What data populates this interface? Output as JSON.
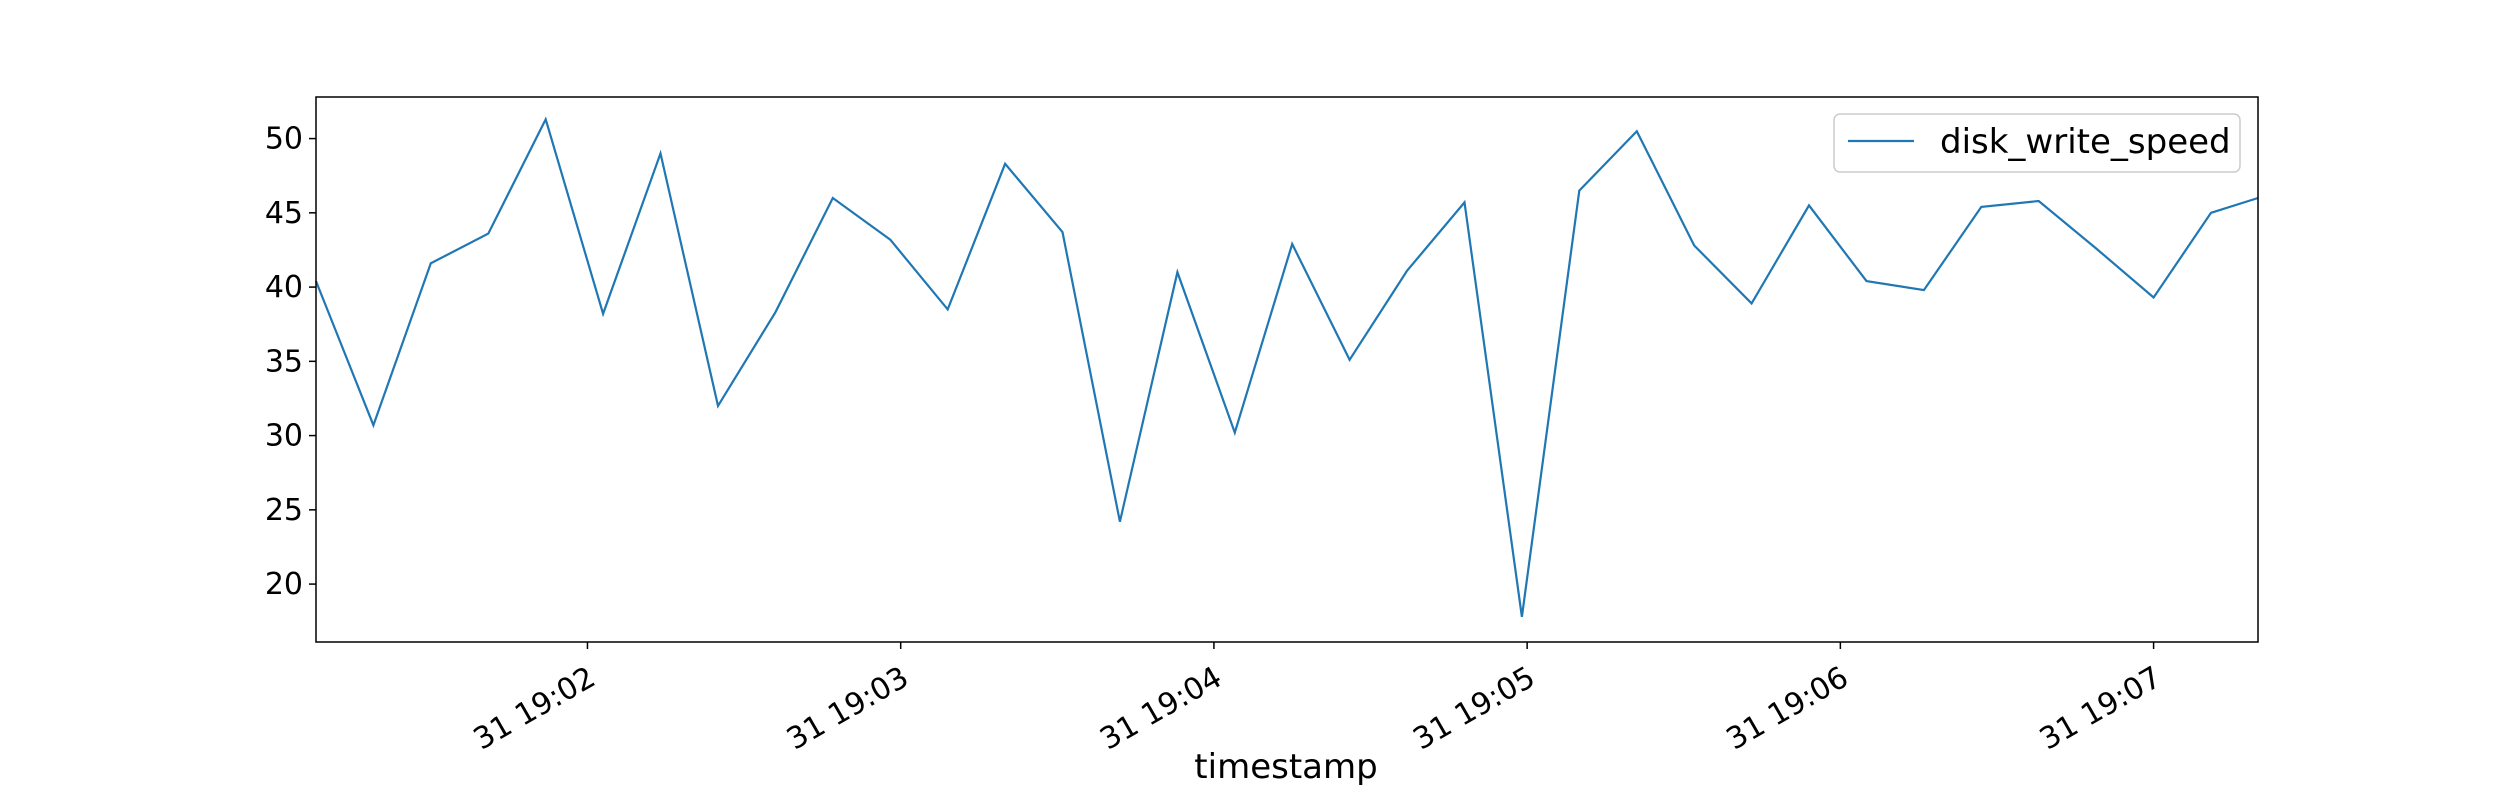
{
  "chart_data": {
    "type": "line",
    "title": "",
    "xlabel": "timestamp",
    "ylabel": "",
    "grid": false,
    "legend_position": "top-right",
    "colors": {
      "series": "#1f77b4",
      "axis": "#000000",
      "background": "#ffffff"
    },
    "x_ticks": [
      "31 19:02",
      "31 19:03",
      "31 19:04",
      "31 19:05",
      "31 19:06",
      "31 19:07"
    ],
    "y_ticks": [
      20,
      25,
      30,
      35,
      40,
      45,
      50
    ],
    "xlim": [
      "19:01:08",
      "19:07:20"
    ],
    "ylim": [
      16.1,
      52.8
    ],
    "x": [
      "19:01:08",
      "19:01:19",
      "19:01:30",
      "19:01:41",
      "19:01:52",
      "19:02:03",
      "19:02:14",
      "19:02:25",
      "19:02:36",
      "19:02:47",
      "19:02:58",
      "19:03:09",
      "19:03:20",
      "19:03:31",
      "19:03:42",
      "19:03:53",
      "19:04:04",
      "19:04:15",
      "19:04:26",
      "19:04:37",
      "19:04:48",
      "19:04:59",
      "19:05:10",
      "19:05:21",
      "19:05:32",
      "19:05:43",
      "19:05:54",
      "19:06:05",
      "19:06:16",
      "19:06:27",
      "19:06:38",
      "19:06:49",
      "19:07:00",
      "19:07:11",
      "19:07:20"
    ],
    "series": [
      {
        "name": "disk_write_speed",
        "values": [
          40.4,
          30.7,
          41.6,
          43.6,
          51.3,
          38.2,
          49.0,
          32.0,
          38.3,
          46.0,
          43.2,
          38.5,
          48.3,
          43.7,
          24.2,
          41.0,
          30.2,
          42.9,
          35.1,
          41.1,
          45.7,
          17.8,
          46.5,
          50.5,
          42.8,
          38.9,
          45.5,
          40.4,
          39.8,
          45.4,
          45.8,
          42.6,
          39.3,
          45.0,
          46.0
        ]
      }
    ]
  }
}
